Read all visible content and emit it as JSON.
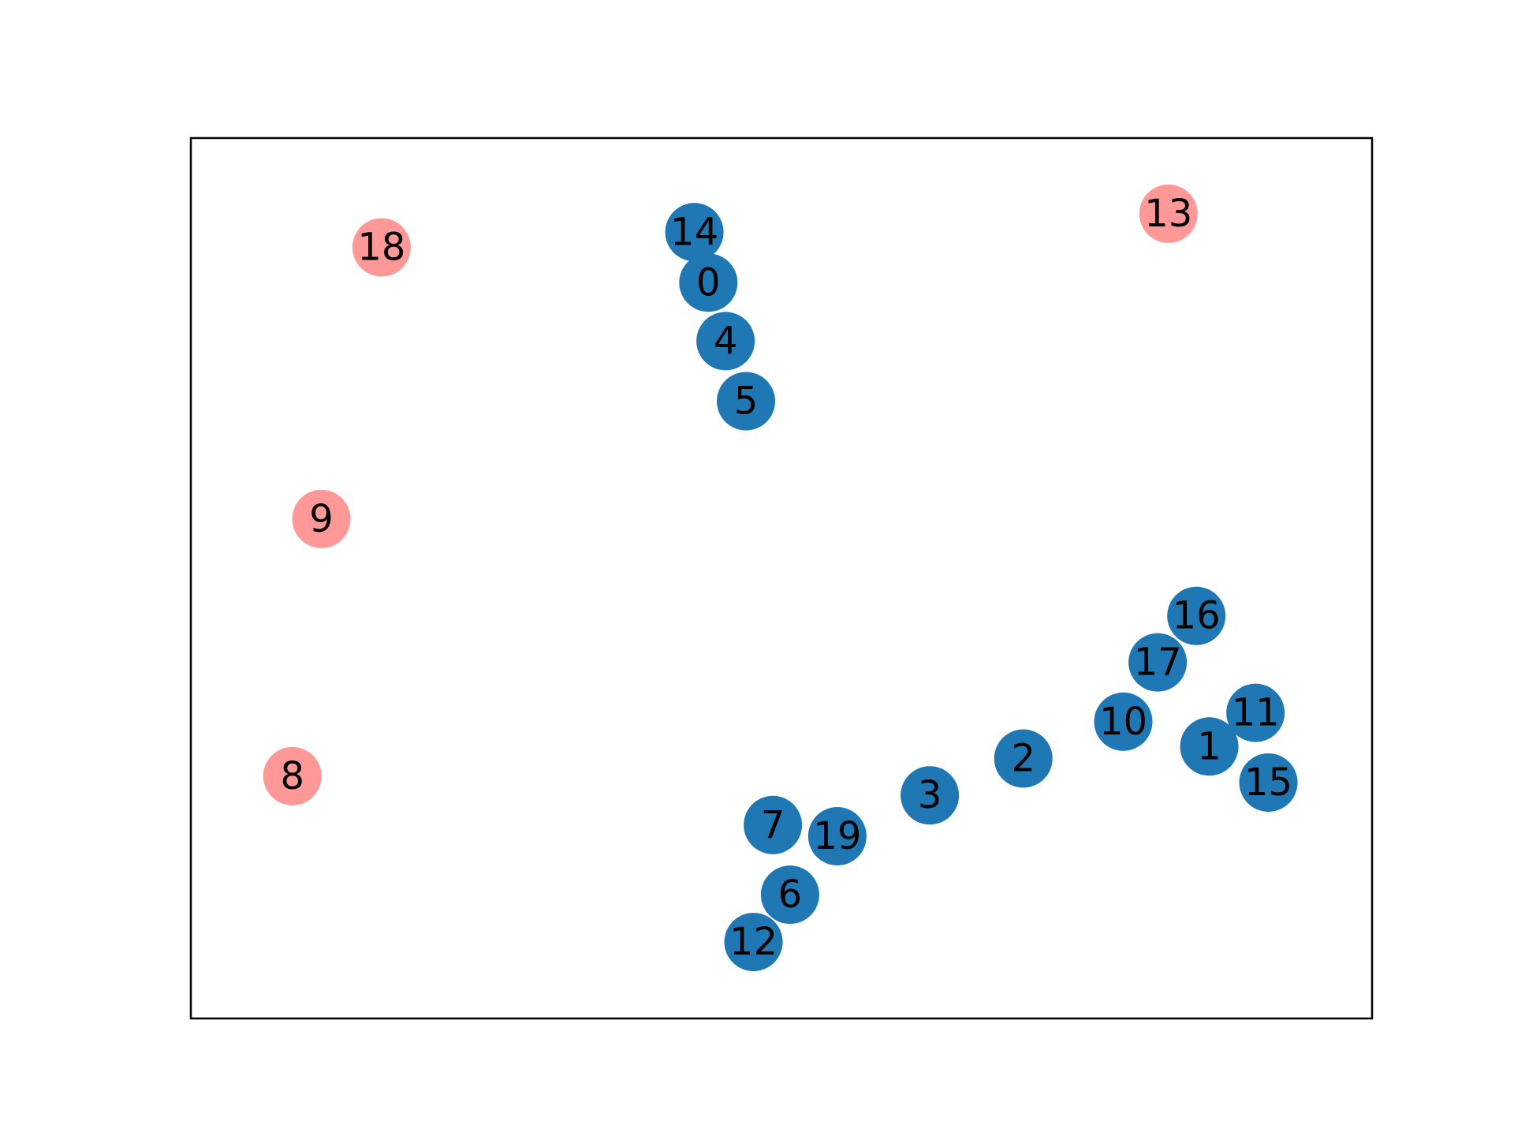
{
  "chart_data": {
    "type": "scatter",
    "title": "",
    "xlabel": "",
    "ylabel": "",
    "grid": false,
    "legend": "none",
    "axes_ticks": false,
    "xlim": [
      0,
      1
    ],
    "ylim": [
      0,
      1
    ],
    "groups": [
      {
        "color": "#1f77b4",
        "nodes": [
          "0",
          "1",
          "2",
          "3",
          "4",
          "5",
          "6",
          "7",
          "10",
          "11",
          "12",
          "14",
          "15",
          "16",
          "17",
          "19"
        ]
      },
      {
        "color": "#ff9896",
        "nodes": [
          "8",
          "9",
          "13",
          "18"
        ]
      }
    ],
    "nodes": [
      {
        "label": "0",
        "x": 0.432,
        "y": 0.869,
        "color": "#1f77b4"
      },
      {
        "label": "1",
        "x": 0.898,
        "y": 0.29,
        "color": "#1f77b4"
      },
      {
        "label": "2",
        "x": 0.725,
        "y": 0.275,
        "color": "#1f77b4"
      },
      {
        "label": "3",
        "x": 0.638,
        "y": 0.229,
        "color": "#1f77b4"
      },
      {
        "label": "4",
        "x": 0.448,
        "y": 0.796,
        "color": "#1f77b4"
      },
      {
        "label": "5",
        "x": 0.467,
        "y": 0.721,
        "color": "#1f77b4"
      },
      {
        "label": "6",
        "x": 0.508,
        "y": 0.105,
        "color": "#1f77b4"
      },
      {
        "label": "7",
        "x": 0.492,
        "y": 0.192,
        "color": "#1f77b4"
      },
      {
        "label": "8",
        "x": 0.045,
        "y": 0.253,
        "color": "#ff9896"
      },
      {
        "label": "9",
        "x": 0.072,
        "y": 0.574,
        "color": "#ff9896"
      },
      {
        "label": "10",
        "x": 0.818,
        "y": 0.321,
        "color": "#1f77b4"
      },
      {
        "label": "11",
        "x": 0.941,
        "y": 0.332,
        "color": "#1f77b4"
      },
      {
        "label": "12",
        "x": 0.474,
        "y": 0.046,
        "color": "#1f77b4"
      },
      {
        "label": "13",
        "x": 0.86,
        "y": 0.955,
        "color": "#ff9896"
      },
      {
        "label": "14",
        "x": 0.419,
        "y": 0.932,
        "color": "#1f77b4"
      },
      {
        "label": "15",
        "x": 0.953,
        "y": 0.245,
        "color": "#1f77b4"
      },
      {
        "label": "16",
        "x": 0.886,
        "y": 0.453,
        "color": "#1f77b4"
      },
      {
        "label": "17",
        "x": 0.85,
        "y": 0.395,
        "color": "#1f77b4"
      },
      {
        "label": "18",
        "x": 0.128,
        "y": 0.913,
        "color": "#ff9896"
      },
      {
        "label": "19",
        "x": 0.552,
        "y": 0.178,
        "color": "#1f77b4"
      }
    ]
  }
}
